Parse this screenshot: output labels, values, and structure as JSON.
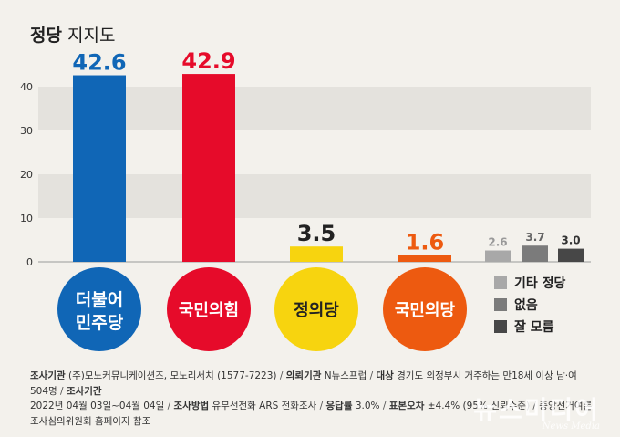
{
  "title": {
    "bold": "정당",
    "light": "지지도"
  },
  "chart_data": {
    "type": "bar",
    "ylim": [
      0,
      45
    ],
    "yticks": [
      "0",
      "10",
      "20",
      "30",
      "40"
    ],
    "grid": "horizontal bands",
    "categories": [
      "더불어 민주당",
      "국민의힘",
      "정의당",
      "국민의당",
      "기타 정당",
      "없음",
      "잘 모름"
    ],
    "values": [
      42.6,
      42.9,
      3.5,
      1.6,
      2.6,
      3.7,
      3.0
    ],
    "value_labels": [
      "42.6",
      "42.9",
      "3.5",
      "1.6",
      "2.6",
      "3.7",
      "3.0"
    ],
    "colors": [
      "#1066b6",
      "#e60b2a",
      "#f7d40f",
      "#ed5a10",
      "#a8a8a8",
      "#7b7b7b",
      "#474747"
    ],
    "label_colors": [
      "#1066b6",
      "#e60b2a",
      "#222222",
      "#ed5a10",
      "#999999",
      "#666666",
      "#333333"
    ],
    "party_badges": [
      {
        "line1": "더불어",
        "line2": "민주당",
        "color": "#1066b6",
        "text_color": "#ffffff"
      },
      {
        "line1": "국민의힘",
        "line2": "",
        "color": "#e60b2a",
        "text_color": "#ffffff"
      },
      {
        "line1": "정의당",
        "line2": "",
        "color": "#f7d40f",
        "text_color": "#222222"
      },
      {
        "line1": "국민의당",
        "line2": "",
        "color": "#ed5a10",
        "text_color": "#ffffff"
      }
    ]
  },
  "legend": [
    {
      "label": "기타 정당",
      "color": "#a8a8a8"
    },
    {
      "label": "없음",
      "color": "#7b7b7b"
    },
    {
      "label": "잘 모름",
      "color": "#474747"
    }
  ],
  "footer": {
    "k1": "조사기관",
    "v1": "(주)모노커뮤니케이션즈, 모노리서치 (1577-7223)",
    "k2": "의뢰기관",
    "v2": "N뉴스프럽",
    "k3": "대상",
    "v3": "경기도 의정부시 거주하는 만18세 이상 남·여 504명",
    "k4": "조사기간",
    "v4": "2022년 04월 03일~04월 04일",
    "k5": "조사방법",
    "v5": "유무선전화 ARS 전화조사",
    "k6": "응답률",
    "v6": "3.0%",
    "k7": "표본오차",
    "v7": "±4.4% (95% 신뢰수준)",
    "v8": "중앙선거여론조사심의위원회 홈페이지 참조"
  },
  "watermark": {
    "main": "뉴스미디어",
    "sub": "News Media"
  }
}
